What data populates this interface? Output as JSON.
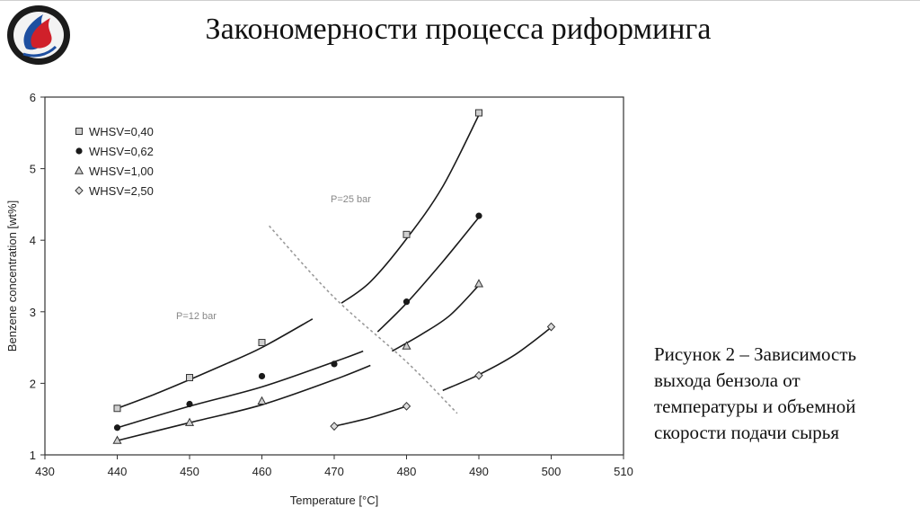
{
  "slide": {
    "title": "Закономерности процесса риформинга",
    "caption_lines": [
      "Рисунок 2 – Зависимость",
      "выхода бензола от",
      "температуры и объемной",
      "скорости подачи сырья"
    ]
  },
  "logo": {
    "icon": "flame-emblem-icon",
    "colors": {
      "ring": "#1b1b1b",
      "red": "#d0202a",
      "blue": "#1e4fa0"
    }
  },
  "chart_data": {
    "type": "scatter",
    "xlabel": "Temperature [°C]",
    "ylabel": "Benzene concentration [wt%]",
    "xlim": [
      430,
      510
    ],
    "ylim": [
      1,
      6
    ],
    "xticks": [
      430,
      440,
      450,
      460,
      470,
      480,
      490,
      500,
      510
    ],
    "xtick_labels": [
      "430",
      "440",
      "450",
      "460",
      "470",
      "480",
      "490",
      "500",
      "510"
    ],
    "yticks": [
      1,
      2,
      3,
      4,
      5,
      6
    ],
    "ytick_labels": [
      "1",
      "2",
      "3",
      "4",
      "5",
      "6"
    ],
    "grid": false,
    "legend_position": "top-left",
    "series": [
      {
        "name": "WHSV=0,40",
        "marker": "square",
        "points": [
          [
            440,
            1.65
          ],
          [
            450,
            2.08
          ],
          [
            460,
            2.57
          ],
          [
            480,
            4.08
          ],
          [
            490,
            5.78
          ]
        ],
        "curve": [
          [
            440,
            1.65
          ],
          [
            445,
            1.84
          ],
          [
            450,
            2.05
          ],
          [
            455,
            2.27
          ],
          [
            460,
            2.5
          ],
          [
            467,
            2.9
          ]
        ],
        "curve2": [
          [
            471,
            3.12
          ],
          [
            475,
            3.42
          ],
          [
            480,
            4.02
          ],
          [
            485,
            4.75
          ],
          [
            490,
            5.75
          ]
        ]
      },
      {
        "name": "WHSV=0,62",
        "marker": "circle",
        "points": [
          [
            440,
            1.38
          ],
          [
            450,
            1.71
          ],
          [
            460,
            2.1
          ],
          [
            470,
            2.27
          ],
          [
            480,
            3.14
          ],
          [
            490,
            4.34
          ]
        ],
        "curve": [
          [
            440,
            1.38
          ],
          [
            450,
            1.68
          ],
          [
            460,
            1.95
          ],
          [
            470,
            2.3
          ],
          [
            474,
            2.45
          ]
        ],
        "curve2": [
          [
            476,
            2.72
          ],
          [
            480,
            3.12
          ],
          [
            485,
            3.7
          ],
          [
            490,
            4.32
          ]
        ]
      },
      {
        "name": "WHSV=1,00",
        "marker": "triangle",
        "points": [
          [
            440,
            1.2
          ],
          [
            450,
            1.45
          ],
          [
            460,
            1.75
          ],
          [
            480,
            2.52
          ],
          [
            490,
            3.39
          ]
        ],
        "curve": [
          [
            440,
            1.2
          ],
          [
            450,
            1.45
          ],
          [
            460,
            1.7
          ],
          [
            470,
            2.05
          ],
          [
            475,
            2.25
          ]
        ],
        "curve2": [
          [
            478,
            2.45
          ],
          [
            482,
            2.68
          ],
          [
            486,
            2.95
          ],
          [
            490,
            3.37
          ]
        ]
      },
      {
        "name": "WHSV=2,50",
        "marker": "diamond",
        "points": [
          [
            470,
            1.4
          ],
          [
            480,
            1.68
          ],
          [
            490,
            2.11
          ],
          [
            500,
            2.79
          ]
        ],
        "curve": [
          [
            470,
            1.4
          ],
          [
            475,
            1.52
          ],
          [
            480,
            1.68
          ]
        ],
        "curve2": [
          [
            485,
            1.9
          ],
          [
            490,
            2.12
          ],
          [
            495,
            2.4
          ],
          [
            500,
            2.78
          ]
        ]
      }
    ],
    "boundary_line": [
      [
        461,
        4.2
      ],
      [
        470,
        3.2
      ],
      [
        480,
        2.3
      ],
      [
        487,
        1.58
      ]
    ],
    "annotations": [
      "P=25 bar",
      "P=12 bar"
    ]
  }
}
